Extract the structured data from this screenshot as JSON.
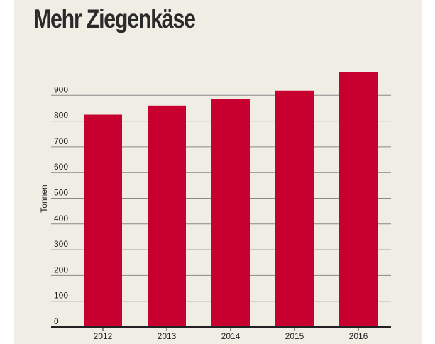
{
  "chart_data": {
    "type": "bar",
    "title": "Mehr Ziegenkäse",
    "xlabel": "",
    "ylabel": "Tonnen",
    "categories": [
      "2012",
      "2013",
      "2014",
      "2015",
      "2016"
    ],
    "values": [
      825,
      860,
      885,
      918,
      990
    ],
    "ylim": [
      0,
      1000
    ],
    "yticks": [
      0,
      100,
      200,
      300,
      400,
      500,
      600,
      700,
      800,
      900
    ],
    "grid": true,
    "legend": "none",
    "colors": {
      "bar": "#c8002f",
      "grid": "#8a8a8a",
      "axis": "#222222",
      "background": "#efede4"
    }
  }
}
